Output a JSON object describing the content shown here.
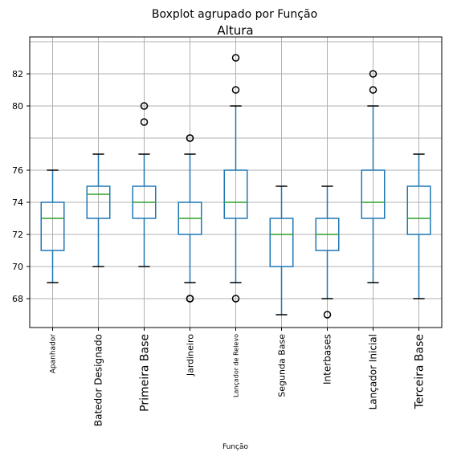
{
  "chart_data": {
    "type": "boxplot",
    "suptitle": "Boxplot agrupado por Função",
    "title": "Altura",
    "xlabel": "Função",
    "ylabel": "",
    "ylim": [
      66.2,
      84.3
    ],
    "yticks": [
      68,
      70,
      72,
      74,
      76,
      80,
      82
    ],
    "ytick_labels": [
      "68",
      "70",
      "72",
      "74",
      "76",
      "80",
      "82"
    ],
    "grid": true,
    "groups": [
      {
        "label": "Apanhador",
        "font_size": 9,
        "whisker_low": 69,
        "q1": 71,
        "median": 73,
        "q3": 74,
        "whisker_high": 76,
        "fliers": []
      },
      {
        "label": "Batedor Designado",
        "font_size": 12,
        "whisker_low": 70,
        "q1": 73,
        "median": 74.5,
        "q3": 75,
        "whisker_high": 77,
        "fliers": []
      },
      {
        "label": "Primeira Base",
        "font_size": 14,
        "whisker_low": 70,
        "q1": 73,
        "median": 74,
        "q3": 75,
        "whisker_high": 77,
        "fliers": [
          79,
          80
        ]
      },
      {
        "label": "Jardineiro",
        "font_size": 11,
        "whisker_low": 69,
        "q1": 72,
        "median": 73,
        "q3": 74,
        "whisker_high": 77,
        "fliers": [
          68,
          68,
          78,
          78
        ]
      },
      {
        "label": "Lançador de Relevo",
        "font_size": 8,
        "whisker_low": 69,
        "q1": 73,
        "median": 74,
        "q3": 76,
        "whisker_high": 80,
        "fliers": [
          68,
          81,
          83
        ]
      },
      {
        "label": "Segunda Base",
        "font_size": 11,
        "whisker_low": 67,
        "q1": 70,
        "median": 72,
        "q3": 73,
        "whisker_high": 75,
        "fliers": []
      },
      {
        "label": "Interbases",
        "font_size": 12,
        "whisker_low": 68,
        "q1": 71,
        "median": 72,
        "q3": 73,
        "whisker_high": 75,
        "fliers": [
          67
        ]
      },
      {
        "label": "Lançador Inicial",
        "font_size": 12,
        "whisker_low": 69,
        "q1": 73,
        "median": 74,
        "q3": 76,
        "whisker_high": 80,
        "fliers": [
          81,
          82
        ]
      },
      {
        "label": "Terceira Base",
        "font_size": 14,
        "whisker_low": 68,
        "q1": 72,
        "median": 73,
        "q3": 75,
        "whisker_high": 77,
        "fliers": []
      }
    ]
  }
}
